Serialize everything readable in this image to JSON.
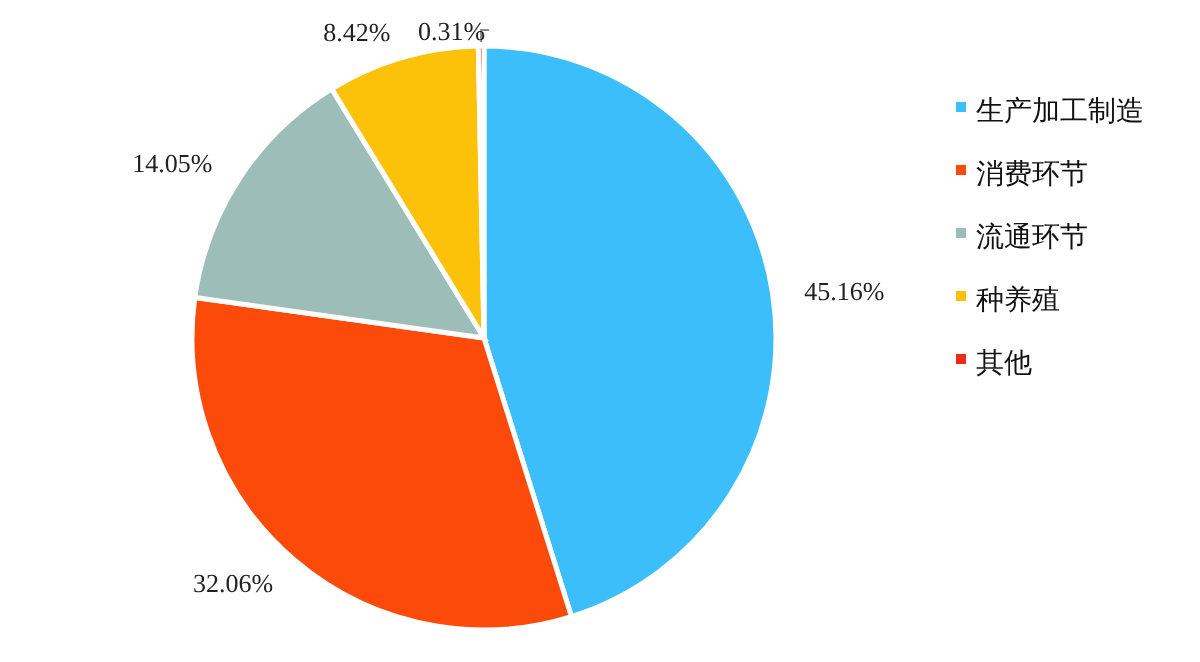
{
  "chart_data": {
    "type": "pie",
    "categories": [
      "生产加工制造",
      "消费环节",
      "流通环节",
      "种养殖",
      "其他"
    ],
    "values": [
      45.16,
      32.06,
      14.05,
      8.42,
      0.31
    ],
    "colors": [
      "#3cbefa",
      "#fc4a0a",
      "#9dbdb8",
      "#fcc20a",
      "#f02a1a"
    ],
    "value_labels": [
      "45.16%",
      "32.06%",
      "14.05%",
      "8.42%",
      "0.31%"
    ],
    "legend": "right"
  }
}
